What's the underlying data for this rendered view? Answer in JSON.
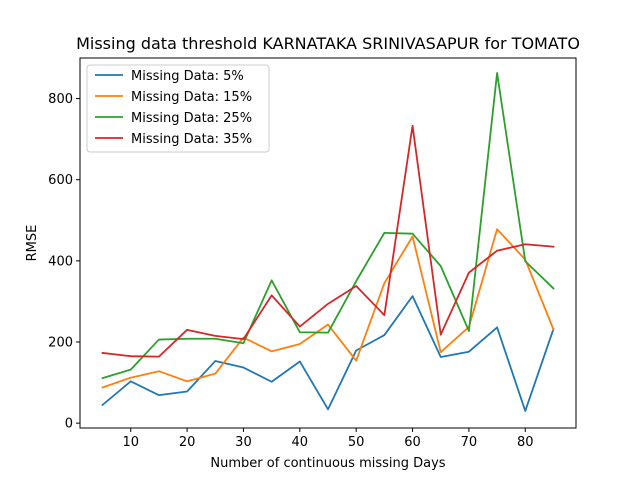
{
  "chart_data": {
    "type": "line",
    "title": "Missing data threshold KARNATAKA SRINIVASAPUR for TOMATO",
    "xlabel": "Number of continuous missing Days",
    "ylabel": "RMSE",
    "xlim": [
      1,
      89
    ],
    "ylim": [
      -12,
      900
    ],
    "xticks": [
      10,
      20,
      30,
      40,
      50,
      60,
      70,
      80
    ],
    "yticks": [
      0,
      200,
      400,
      600,
      800
    ],
    "grid": false,
    "legend_position": "top-left",
    "x": [
      5,
      10,
      15,
      20,
      25,
      30,
      35,
      40,
      45,
      50,
      55,
      60,
      65,
      70,
      75,
      80,
      85
    ],
    "series": [
      {
        "name": "Missing Data: 5%",
        "color": "#1f77b4",
        "values": [
          45,
          103,
          69,
          78,
          153,
          137,
          102,
          152,
          34,
          179,
          217,
          313,
          163,
          176,
          236,
          30,
          232
        ]
      },
      {
        "name": "Missing Data: 15%",
        "color": "#ff7f0e",
        "values": [
          88,
          112,
          128,
          103,
          122,
          211,
          177,
          195,
          243,
          154,
          345,
          460,
          175,
          237,
          478,
          403,
          231
        ]
      },
      {
        "name": "Missing Data: 25%",
        "color": "#2ca02c",
        "values": [
          111,
          132,
          206,
          208,
          208,
          197,
          352,
          224,
          223,
          350,
          469,
          467,
          387,
          227,
          863,
          399,
          332
        ]
      },
      {
        "name": "Missing Data: 35%",
        "color": "#d62728",
        "values": [
          173,
          165,
          164,
          230,
          215,
          207,
          315,
          238,
          294,
          338,
          266,
          733,
          218,
          371,
          425,
          441,
          435
        ]
      }
    ]
  }
}
